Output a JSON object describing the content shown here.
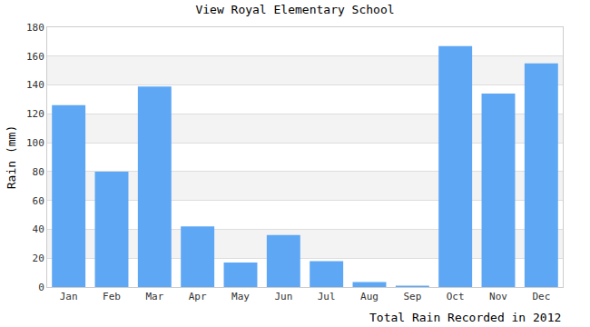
{
  "chart_data": {
    "type": "bar",
    "title": "View Royal Elementary School",
    "categories": [
      "Jan",
      "Feb",
      "Mar",
      "Apr",
      "May",
      "Jun",
      "Jul",
      "Aug",
      "Sep",
      "Oct",
      "Nov",
      "Dec"
    ],
    "values": [
      126,
      80,
      139,
      42,
      17,
      36,
      18,
      3.5,
      1,
      167,
      134,
      155
    ],
    "color": "#5ea7f5",
    "ylabel": "Rain (mm)",
    "xlabel": "Total Rain Recorded in 2012",
    "ylim": [
      0,
      180
    ],
    "yticks": [
      0,
      20,
      40,
      60,
      80,
      100,
      120,
      140,
      160,
      180
    ],
    "grid": true
  }
}
